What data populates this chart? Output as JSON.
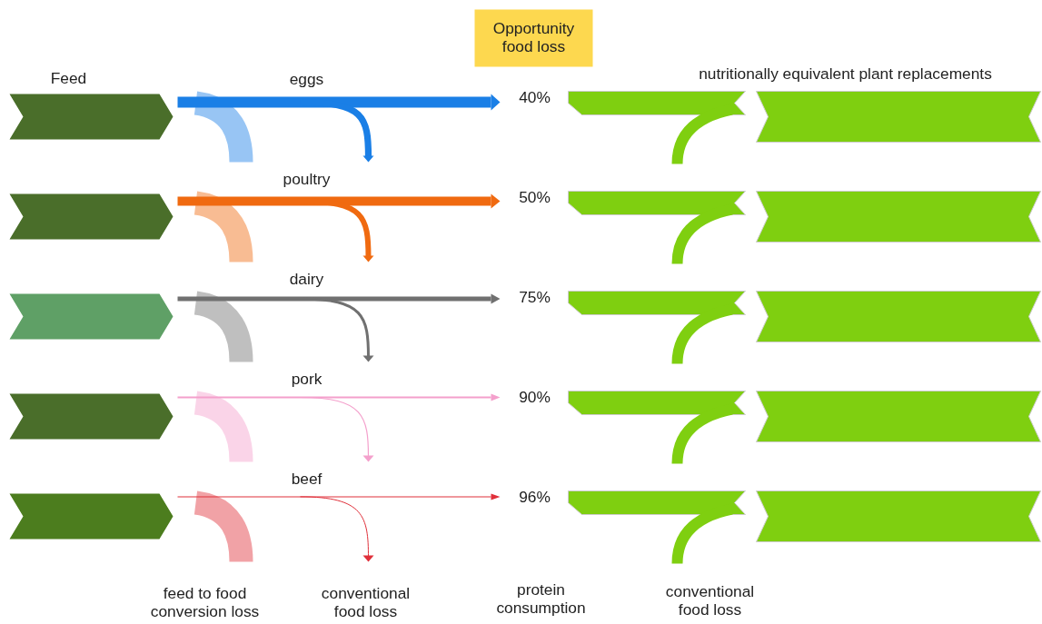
{
  "chart_data": {
    "type": "other",
    "title": "Opportunity food loss",
    "categories": [
      "eggs",
      "poultry",
      "dairy",
      "pork",
      "beef"
    ],
    "values": [
      40,
      50,
      75,
      90,
      96
    ],
    "value_labels": [
      "40%",
      "50%",
      "75%",
      "90%",
      "96%"
    ],
    "colors": [
      "#1a7fe6",
      "#f06a10",
      "#707070",
      "#f4a0cc",
      "#e0303a"
    ],
    "annotations": [
      "Feed",
      "nutritionally equivalent plant replacements",
      "feed to food conversion loss",
      "conventional food loss",
      "protein consumption",
      "conventional food loss"
    ]
  }
}
